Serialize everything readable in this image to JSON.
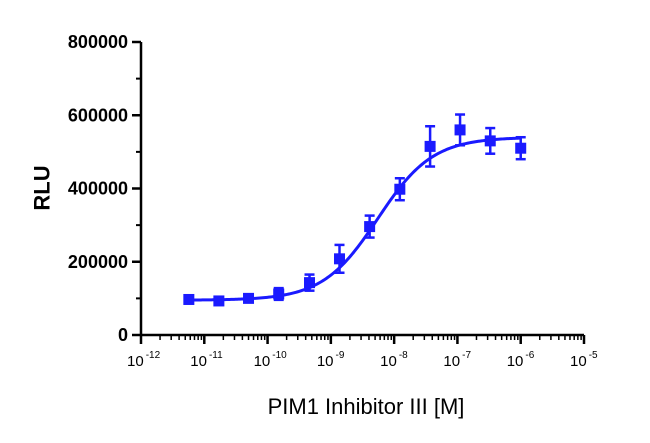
{
  "chart_data": {
    "type": "scatter",
    "title": "",
    "xlabel": "PIM1 Inhibitor III [M]",
    "ylabel": "RLU",
    "x_scale": "log",
    "xlim": [
      1e-12,
      1e-05
    ],
    "ylim": [
      0,
      800000
    ],
    "x_tick_labels": [
      {
        "base": "10",
        "exp": "-12"
      },
      {
        "base": "10",
        "exp": "-11"
      },
      {
        "base": "10",
        "exp": "-10"
      },
      {
        "base": "10",
        "exp": "-9"
      },
      {
        "base": "10",
        "exp": "-8"
      },
      {
        "base": "10",
        "exp": "-7"
      },
      {
        "base": "10",
        "exp": "-6"
      },
      {
        "base": "10",
        "exp": "-5"
      }
    ],
    "y_tick_labels": [
      "0",
      "200000",
      "400000",
      "600000",
      "800000"
    ],
    "grid": false,
    "legend": "none",
    "series": [
      {
        "color": "#1a1aff",
        "marker": "square",
        "points": [
          {
            "x": 5.7e-12,
            "y": 97000,
            "err": 6000
          },
          {
            "x": 1.7e-11,
            "y": 93000,
            "err": 8000
          },
          {
            "x": 5e-11,
            "y": 100000,
            "err": 7000
          },
          {
            "x": 1.5e-10,
            "y": 112000,
            "err": 16000
          },
          {
            "x": 4.6e-10,
            "y": 143000,
            "err": 22000
          },
          {
            "x": 1.37e-09,
            "y": 208000,
            "err": 38000
          },
          {
            "x": 4.1e-09,
            "y": 296000,
            "err": 30000
          },
          {
            "x": 1.23e-08,
            "y": 398000,
            "err": 30000
          },
          {
            "x": 3.7e-08,
            "y": 515000,
            "err": 55000
          },
          {
            "x": 1.1e-07,
            "y": 560000,
            "err": 42000
          },
          {
            "x": 3.3e-07,
            "y": 530000,
            "err": 35000
          },
          {
            "x": 1e-06,
            "y": 510000,
            "err": 30000
          }
        ]
      }
    ],
    "fit": {
      "model": "4PL",
      "bottom": 95000,
      "top": 540000,
      "ec50": 5.5e-09,
      "hill": 1.0,
      "x_from": 5.7e-12,
      "x_to": 1e-06,
      "color": "#1a1aff"
    }
  }
}
